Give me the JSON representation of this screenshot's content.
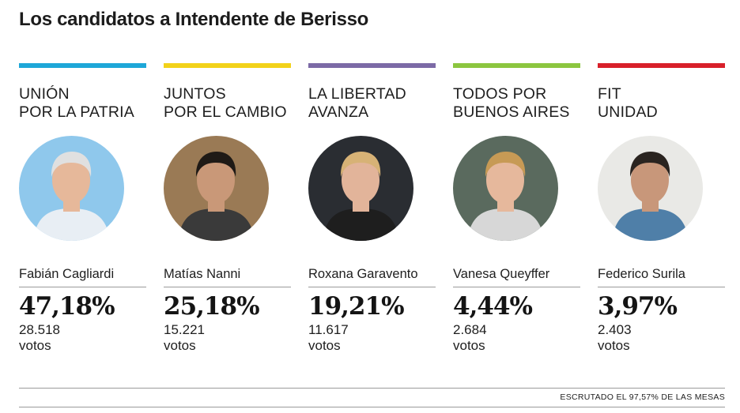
{
  "title": "Los candidatos a Intendente de Berisso",
  "candidates": [
    {
      "party": "UNIÓN\nPOR LA PATRIA",
      "color": "#1ea7d8",
      "name": "Fabián Cagliardi",
      "percent": "47,18%",
      "votes": "28.518",
      "votes_label": "votos",
      "photo_bg": "#8fc8ec",
      "hair": "#e0e0e0",
      "skin": "#e6b89a",
      "shirt": "#e8eef4"
    },
    {
      "party": "JUNTOS\nPOR EL CAMBIO",
      "color": "#f2d21a",
      "name": "Matías Nanni",
      "percent": "25,18%",
      "votes": "15.221",
      "votes_label": "votos",
      "photo_bg": "#9a7a55",
      "hair": "#1f1a16",
      "skin": "#c99878",
      "shirt": "#3a3a3a"
    },
    {
      "party": "LA LIBERTAD\nAVANZA",
      "color": "#7c6aa6",
      "name": "Roxana Garavento",
      "percent": "19,21%",
      "votes": "11.617",
      "votes_label": "votos",
      "photo_bg": "#2a2d32",
      "hair": "#d7b276",
      "skin": "#e2b49a",
      "shirt": "#1e1e1e"
    },
    {
      "party": "TODOS POR\nBUENOS AIRES",
      "color": "#8cc63f",
      "name": "Vanesa Queyffer",
      "percent": "4,44%",
      "votes": "2.684",
      "votes_label": "votos",
      "photo_bg": "#5a6a5e",
      "hair": "#c79a55",
      "skin": "#e6b89c",
      "shirt": "#d7d7d7"
    },
    {
      "party": "FIT\nUNIDAD",
      "color": "#d8202a",
      "name": "Federico Surila",
      "percent": "3,97%",
      "votes": "2.403",
      "votes_label": "votos",
      "photo_bg": "#e9e9e6",
      "hair": "#2a2420",
      "skin": "#c8977a",
      "shirt": "#4f7fa8"
    }
  ],
  "footer": "ESCRUTADO EL 97,57% DE LAS MESAS"
}
